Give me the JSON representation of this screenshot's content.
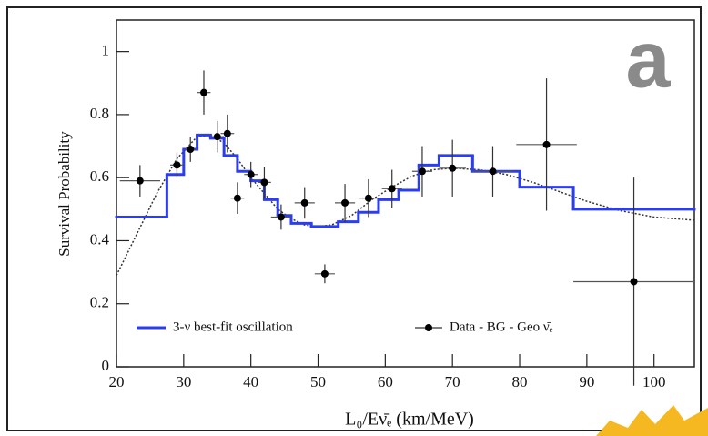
{
  "chart_data": {
    "type": "errorbar",
    "panel_label": "a",
    "xlabel": "L₀/Eν̄ₑ (km/MeV)",
    "ylabel": "Survival Probability",
    "xlim": [
      20,
      106
    ],
    "ylim": [
      0,
      1.1
    ],
    "xticks": [
      20,
      30,
      40,
      50,
      60,
      70,
      80,
      90,
      100
    ],
    "yticks": [
      0,
      0.2,
      0.4,
      0.6,
      0.8,
      1
    ],
    "series": [
      {
        "name": "3-ν best-fit oscillation",
        "color": "#2b3df0",
        "bins": [
          20,
          27.5,
          30,
          32,
          34,
          36,
          38,
          40,
          42,
          44,
          46,
          49,
          53,
          56,
          59,
          62,
          65,
          68,
          73,
          80,
          88,
          106
        ],
        "values": [
          0.475,
          0.61,
          0.69,
          0.735,
          0.725,
          0.67,
          0.62,
          0.59,
          0.53,
          0.48,
          0.455,
          0.445,
          0.46,
          0.49,
          0.53,
          0.56,
          0.64,
          0.67,
          0.62,
          0.57,
          0.5
        ]
      },
      {
        "name": "Data - BG - Geo ν̄ₑ",
        "color": "#000000",
        "x": [
          23.5,
          29,
          31,
          33,
          35,
          36.5,
          38,
          40,
          42,
          44.5,
          48,
          51,
          54,
          57.5,
          61,
          65.5,
          70,
          76,
          84,
          97
        ],
        "values": [
          0.59,
          0.64,
          0.69,
          0.87,
          0.73,
          0.74,
          0.535,
          0.61,
          0.585,
          0.475,
          0.52,
          0.295,
          0.52,
          0.535,
          0.565,
          0.62,
          0.63,
          0.62,
          0.705,
          0.27
        ],
        "yerr": [
          0.05,
          0.04,
          0.04,
          0.07,
          0.05,
          0.06,
          0.05,
          0.04,
          0.05,
          0.04,
          0.05,
          0.03,
          0.06,
          0.06,
          0.06,
          0.08,
          0.09,
          0.08,
          0.21,
          0.33
        ],
        "xerr": [
          3,
          1,
          1,
          1,
          1,
          1,
          1,
          1,
          1,
          1.5,
          1.5,
          1.5,
          1.5,
          1.5,
          1.5,
          1.5,
          2,
          3,
          4.5,
          9
        ]
      }
    ],
    "curve": {
      "color": "#333333",
      "x": [
        20,
        23,
        26,
        29,
        32,
        34,
        36,
        38,
        40,
        42,
        44,
        46,
        48,
        50,
        52,
        55,
        58,
        61,
        64,
        67,
        70,
        74,
        78,
        82,
        86,
        90,
        95,
        100,
        106
      ],
      "values": [
        0.29,
        0.42,
        0.55,
        0.66,
        0.73,
        0.735,
        0.71,
        0.66,
        0.6,
        0.55,
        0.5,
        0.47,
        0.45,
        0.445,
        0.45,
        0.48,
        0.53,
        0.57,
        0.605,
        0.625,
        0.63,
        0.625,
        0.61,
        0.585,
        0.555,
        0.525,
        0.495,
        0.475,
        0.465
      ]
    }
  }
}
